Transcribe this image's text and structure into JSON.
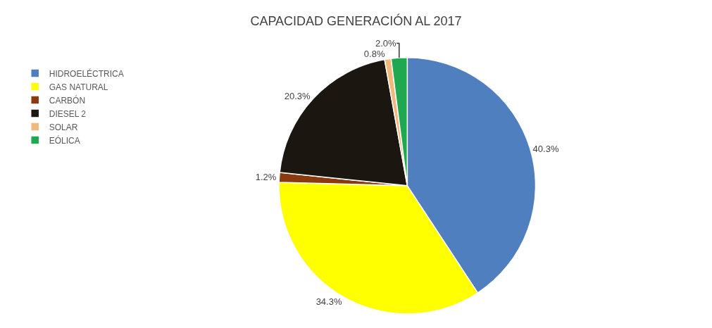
{
  "chart_data": {
    "type": "pie",
    "title": "CAPACIDAD GENERACIÓN AL 2017",
    "categories": [
      "HIDROELÉCTRICA",
      "GAS NATURAL",
      "CARBÓN",
      "DIESEL 2",
      "SOLAR",
      "EÓLICA"
    ],
    "values": [
      40.3,
      34.3,
      1.2,
      20.3,
      0.8,
      2.0
    ],
    "value_labels": [
      "40.3%",
      "34.3%",
      "1.2%",
      "20.3%",
      "0.8%",
      "2.0%"
    ],
    "colors": [
      "#4f7fbf",
      "#ffff00",
      "#8b3a10",
      "#1c1610",
      "#f0b87a",
      "#1fa84f"
    ],
    "legend": "left"
  }
}
